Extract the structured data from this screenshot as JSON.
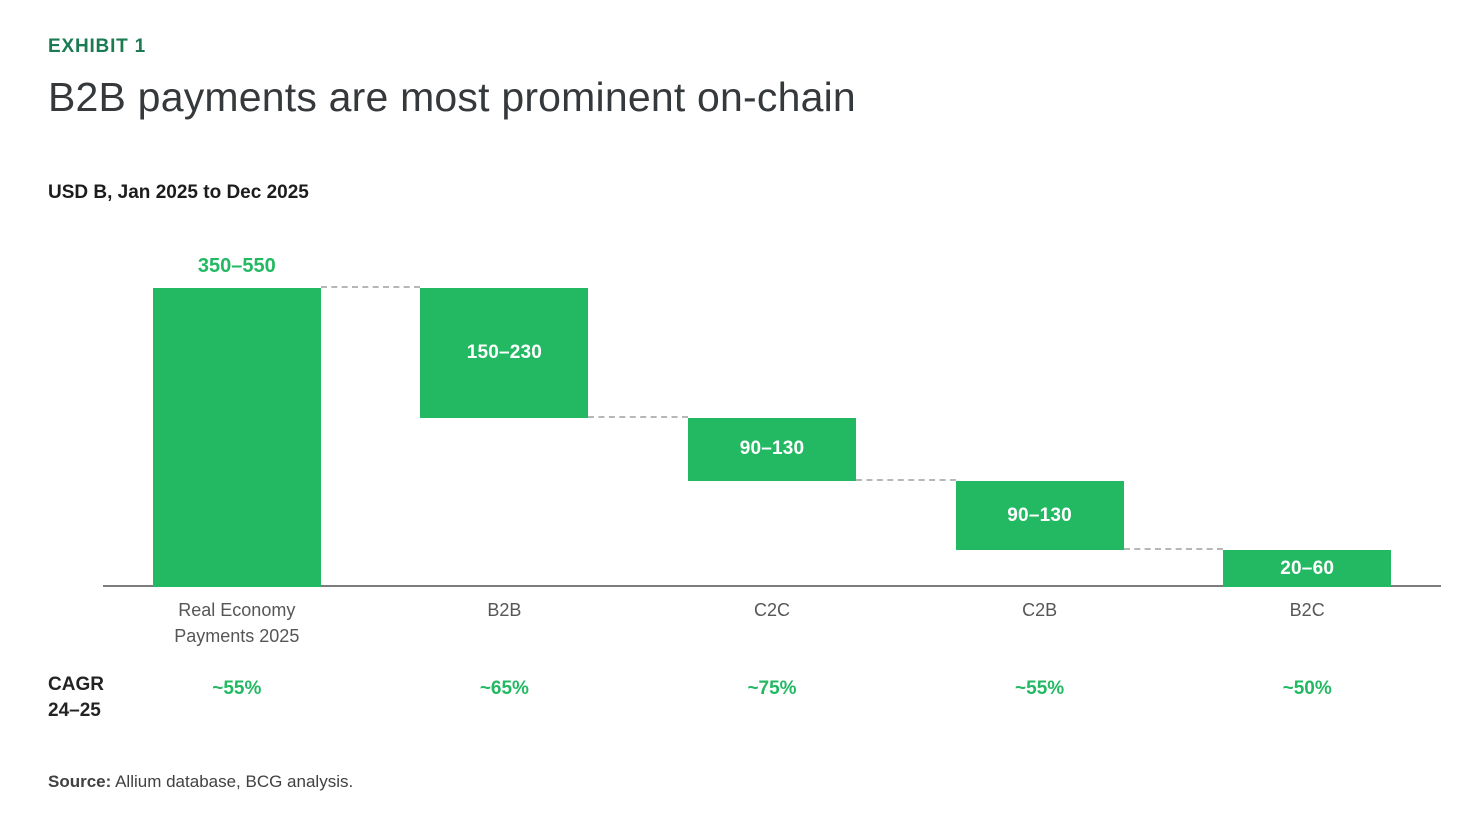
{
  "header": {
    "exhibit_label": "EXHIBIT 1",
    "title": "B2B payments are most prominent on-chain",
    "units_label": "USD B, Jan 2025 to Dec 2025"
  },
  "cagr": {
    "label_line1": "CAGR",
    "label_line2": "24–25"
  },
  "footer": {
    "source_label": "Source:",
    "source_text": "Allium database, BCG analysis."
  },
  "colors": {
    "bar_green": "#23b963",
    "exhibit_green": "#1a7a52",
    "title_color": "#35393b",
    "axis_color": "#7c7c7c",
    "connector_color": "#b7b7b7"
  },
  "chart_data": {
    "type": "bar",
    "subtype": "waterfall",
    "title": "B2B payments are most prominent on-chain",
    "units": "USD B, Jan 2025 to Dec 2025",
    "categories": [
      "Real Economy Payments 2025",
      "B2B",
      "C2C",
      "C2B",
      "B2C"
    ],
    "bars": [
      {
        "category": "Real Economy Payments 2025",
        "value_label": "350–550",
        "range_usd_b": [
          350,
          550
        ],
        "level_from": 0,
        "level_to": 450,
        "label_placement": "above",
        "cagr_24_25": "~55%"
      },
      {
        "category": "B2B",
        "value_label": "150–230",
        "range_usd_b": [
          150,
          230
        ],
        "level_from": 255,
        "level_to": 450,
        "label_placement": "inside",
        "cagr_24_25": "~65%"
      },
      {
        "category": "C2C",
        "value_label": "90–130",
        "range_usd_b": [
          90,
          130
        ],
        "level_from": 160,
        "level_to": 255,
        "label_placement": "inside",
        "cagr_24_25": "~75%"
      },
      {
        "category": "C2B",
        "value_label": "90–130",
        "range_usd_b": [
          90,
          130
        ],
        "level_from": 55,
        "level_to": 160,
        "label_placement": "inside",
        "cagr_24_25": "~55%"
      },
      {
        "category": "B2C",
        "value_label": "20–60",
        "range_usd_b": [
          20,
          60
        ],
        "level_from": 0,
        "level_to": 55,
        "label_placement": "inside",
        "cagr_24_25": "~50%"
      }
    ],
    "cagr_row_label": "CAGR 24–25",
    "ylim": [
      0,
      450
    ],
    "gridlines": false,
    "legend": "none",
    "connector_style": "dashed"
  }
}
